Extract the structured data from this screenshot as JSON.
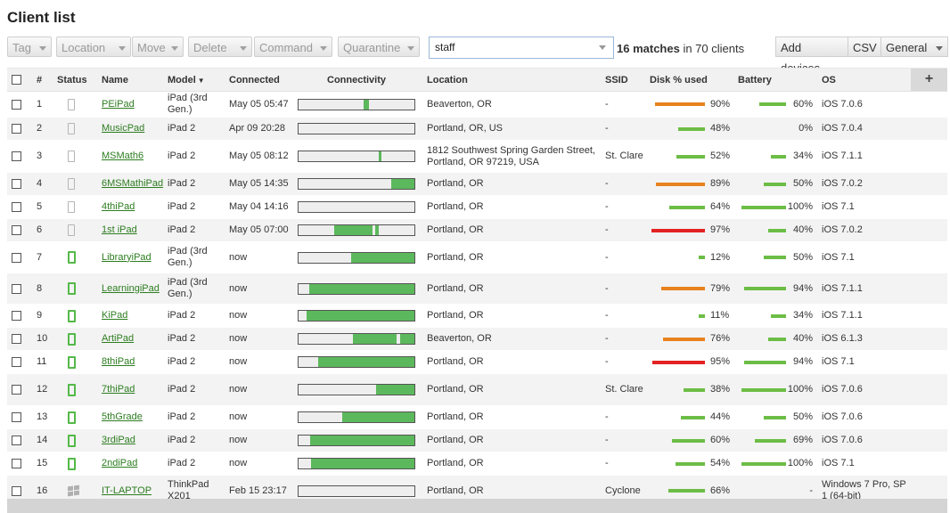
{
  "page": {
    "title": "Client list"
  },
  "toolbar": {
    "tag": "Tag",
    "location": "Location",
    "move": "Move",
    "delete": "Delete",
    "command": "Command",
    "quarantine": "Quarantine",
    "search_value": "staff",
    "matches_count": "16 matches",
    "matches_suffix": " in 70 clients",
    "add_devices": "Add devices",
    "csv": "CSV",
    "general": "General"
  },
  "columns": {
    "num": "#",
    "status": "Status",
    "name": "Name",
    "model": "Model",
    "connected": "Connected",
    "connectivity": "Connectivity",
    "location": "Location",
    "ssid": "SSID",
    "disk": "Disk % used",
    "battery": "Battery",
    "os": "OS",
    "add": "+"
  },
  "colors": {
    "green": "#6cbd45",
    "orange": "#e8821e",
    "red": "#e32222",
    "link": "#2d7d20"
  },
  "rows": [
    {
      "num": "1",
      "icon": "ipad-gray-icon",
      "name": "PEiPad",
      "model": "iPad (3rd Gen.)",
      "connected": "May 05 05:47",
      "conn": [
        [
          0.565,
          0.04
        ]
      ],
      "location": "Beaverton, OR",
      "ssid": "-",
      "disk": "90%",
      "disk_pct": 90,
      "disk_color": "orange",
      "battery": "60%",
      "battery_pct": 60,
      "os": "iOS 7.0.6"
    },
    {
      "num": "2",
      "icon": "ipad-gray-icon",
      "name": "MusicPad",
      "model": "iPad 2",
      "connected": "Apr 09 20:28",
      "conn": [],
      "location": "Portland, OR, US",
      "ssid": "-",
      "disk": "48%",
      "disk_pct": 48,
      "disk_color": "green",
      "battery": "0%",
      "battery_pct": 0,
      "os": "iOS 7.0.4"
    },
    {
      "num": "3",
      "icon": "ipad-gray-icon",
      "name": "MSMath6",
      "model": "iPad 2",
      "connected": "May 05 08:12",
      "conn": [
        [
          0.69,
          0.025
        ]
      ],
      "location": "1812 Southwest Spring Garden Street, Portland, OR 97219, USA",
      "ssid": "St. Clare",
      "disk": "52%",
      "disk_pct": 52,
      "disk_color": "green",
      "battery": "34%",
      "battery_pct": 34,
      "os": "iOS 7.1.1"
    },
    {
      "num": "4",
      "icon": "ipad-gray-icon",
      "name": "6MSMathiPad",
      "model": "iPad 2",
      "connected": "May 05 14:35",
      "conn": [
        [
          0.8,
          0.2
        ]
      ],
      "location": "Portland, OR",
      "ssid": "-",
      "disk": "89%",
      "disk_pct": 89,
      "disk_color": "orange",
      "battery": "50%",
      "battery_pct": 50,
      "os": "iOS 7.0.2"
    },
    {
      "num": "5",
      "icon": "ipad-gray-icon",
      "name": "4thiPad",
      "model": "iPad 2",
      "connected": "May 04 14:16",
      "conn": [],
      "location": "Portland, OR",
      "ssid": "-",
      "disk": "64%",
      "disk_pct": 64,
      "disk_color": "green",
      "battery": "100%",
      "battery_pct": 100,
      "os": "iOS 7.1"
    },
    {
      "num": "6",
      "icon": "ipad-gray-icon",
      "name": "1st iPad",
      "model": "iPad 2",
      "connected": "May 05 07:00",
      "conn": [
        [
          0.31,
          0.33
        ],
        [
          0.665,
          0.03
        ]
      ],
      "location": "Portland, OR",
      "ssid": "-",
      "disk": "97%",
      "disk_pct": 97,
      "disk_color": "red",
      "battery": "40%",
      "battery_pct": 40,
      "os": "iOS 7.0.2"
    },
    {
      "num": "7",
      "icon": "ipad-green-icon",
      "name": "LibraryiPad",
      "model": "iPad (3rd Gen.)",
      "connected": "now",
      "conn": [
        [
          0.45,
          0.55
        ]
      ],
      "location": "Portland, OR",
      "ssid": "-",
      "disk": "12%",
      "disk_pct": 12,
      "disk_color": "green",
      "battery": "50%",
      "battery_pct": 50,
      "os": "iOS 7.1"
    },
    {
      "num": "8",
      "icon": "ipad-green-icon",
      "name": "LearningiPad",
      "model": "iPad (3rd Gen.)",
      "connected": "now",
      "conn": [
        [
          0.09,
          0.91
        ]
      ],
      "location": "Portland, OR",
      "ssid": "-",
      "disk": "79%",
      "disk_pct": 79,
      "disk_color": "orange",
      "battery": "94%",
      "battery_pct": 94,
      "os": "iOS 7.1.1"
    },
    {
      "num": "9",
      "icon": "ipad-green-icon",
      "name": "KiPad",
      "model": "iPad 2",
      "connected": "now",
      "conn": [
        [
          0.07,
          0.93
        ]
      ],
      "location": "Portland, OR",
      "ssid": "-",
      "disk": "11%",
      "disk_pct": 11,
      "disk_color": "green",
      "battery": "34%",
      "battery_pct": 34,
      "os": "iOS 7.1.1"
    },
    {
      "num": "10",
      "icon": "ipad-green-icon",
      "name": "ArtiPad",
      "model": "iPad 2",
      "connected": "now",
      "conn": [
        [
          0.47,
          0.38
        ],
        [
          0.88,
          0.12
        ]
      ],
      "location": "Beaverton, OR",
      "ssid": "-",
      "disk": "76%",
      "disk_pct": 76,
      "disk_color": "orange",
      "battery": "40%",
      "battery_pct": 40,
      "os": "iOS 6.1.3"
    },
    {
      "num": "11",
      "icon": "ipad-green-icon",
      "name": "8thiPad",
      "model": "iPad 2",
      "connected": "now",
      "conn": [
        [
          0.17,
          0.83
        ]
      ],
      "location": "Portland, OR",
      "ssid": "-",
      "disk": "95%",
      "disk_pct": 95,
      "disk_color": "red",
      "battery": "94%",
      "battery_pct": 94,
      "os": "iOS 7.1"
    },
    {
      "num": "12",
      "icon": "ipad-green-icon",
      "name": "7thiPad",
      "model": "iPad 2",
      "connected": "now",
      "conn": [
        [
          0.67,
          0.33
        ]
      ],
      "location": "Portland, OR",
      "ssid": "St. Clare",
      "disk": "38%",
      "disk_pct": 38,
      "disk_color": "green",
      "battery": "100%",
      "battery_pct": 100,
      "os": "iOS 7.0.6"
    },
    {
      "num": "13",
      "icon": "ipad-green-icon",
      "name": "5thGrade",
      "model": "iPad 2",
      "connected": "now",
      "conn": [
        [
          0.38,
          0.62
        ]
      ],
      "location": "Portland, OR",
      "ssid": "-",
      "disk": "44%",
      "disk_pct": 44,
      "disk_color": "green",
      "battery": "50%",
      "battery_pct": 50,
      "os": "iOS 7.0.6"
    },
    {
      "num": "14",
      "icon": "ipad-green-icon",
      "name": "3rdiPad",
      "model": "iPad 2",
      "connected": "now",
      "conn": [
        [
          0.1,
          0.9
        ]
      ],
      "location": "Portland, OR",
      "ssid": "-",
      "disk": "60%",
      "disk_pct": 60,
      "disk_color": "green",
      "battery": "69%",
      "battery_pct": 69,
      "os": "iOS 7.0.6"
    },
    {
      "num": "15",
      "icon": "ipad-green-icon",
      "name": "2ndiPad",
      "model": "iPad 2",
      "connected": "now",
      "conn": [
        [
          0.11,
          0.89
        ]
      ],
      "location": "Portland, OR",
      "ssid": "-",
      "disk": "54%",
      "disk_pct": 54,
      "disk_color": "green",
      "battery": "100%",
      "battery_pct": 100,
      "os": "iOS 7.1"
    },
    {
      "num": "16",
      "icon": "windows-icon",
      "name": "IT-LAPTOP",
      "model": "ThinkPad X201",
      "connected": "Feb 15 23:17",
      "conn": [],
      "location": "Portland, OR",
      "ssid": "Cyclone",
      "disk": "66%",
      "disk_pct": 66,
      "disk_color": "green",
      "battery": "-",
      "battery_pct": 0,
      "os": "Windows 7 Pro, SP 1 (64-bit)"
    }
  ]
}
